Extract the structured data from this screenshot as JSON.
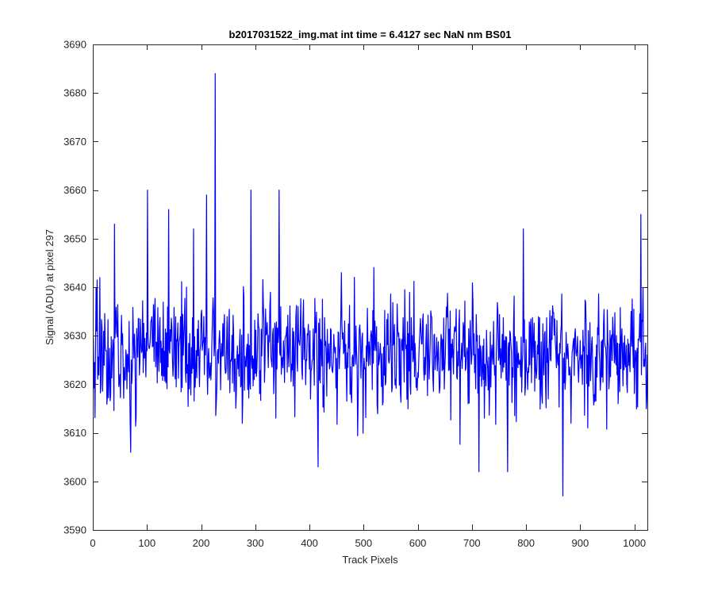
{
  "chart_data": {
    "type": "line",
    "title": "b2017031522_img.mat int time = 6.4127 sec  NaN nm BS01",
    "xlabel": "Track Pixels",
    "ylabel": "Signal (ADU) at pixel 297",
    "xlim": [
      0,
      1024
    ],
    "ylim": [
      3590,
      3690
    ],
    "xticks": [
      0,
      100,
      200,
      300,
      400,
      500,
      600,
      700,
      800,
      900,
      1000
    ],
    "yticks": [
      3590,
      3600,
      3610,
      3620,
      3630,
      3640,
      3650,
      3660,
      3670,
      3680,
      3690
    ],
    "grid": false,
    "legend": "none",
    "series": [
      {
        "color": "#0000ff",
        "x_start": 1,
        "x_step": 1,
        "n_points": 1024,
        "baseline": 3627,
        "noise_sd": 6,
        "drift_end": 3626,
        "peaks": [
          {
            "x": 226,
            "y": 3684
          },
          {
            "x": 101,
            "y": 3660
          },
          {
            "x": 292,
            "y": 3660
          },
          {
            "x": 344,
            "y": 3660
          },
          {
            "x": 210,
            "y": 3659
          },
          {
            "x": 1012,
            "y": 3655
          },
          {
            "x": 40,
            "y": 3653
          },
          {
            "x": 140,
            "y": 3656
          },
          {
            "x": 795,
            "y": 3652
          },
          {
            "x": 186,
            "y": 3652
          },
          {
            "x": 416,
            "y": 3603
          },
          {
            "x": 713,
            "y": 3602
          },
          {
            "x": 766,
            "y": 3602
          },
          {
            "x": 868,
            "y": 3597
          },
          {
            "x": 70,
            "y": 3606
          }
        ]
      }
    ]
  }
}
